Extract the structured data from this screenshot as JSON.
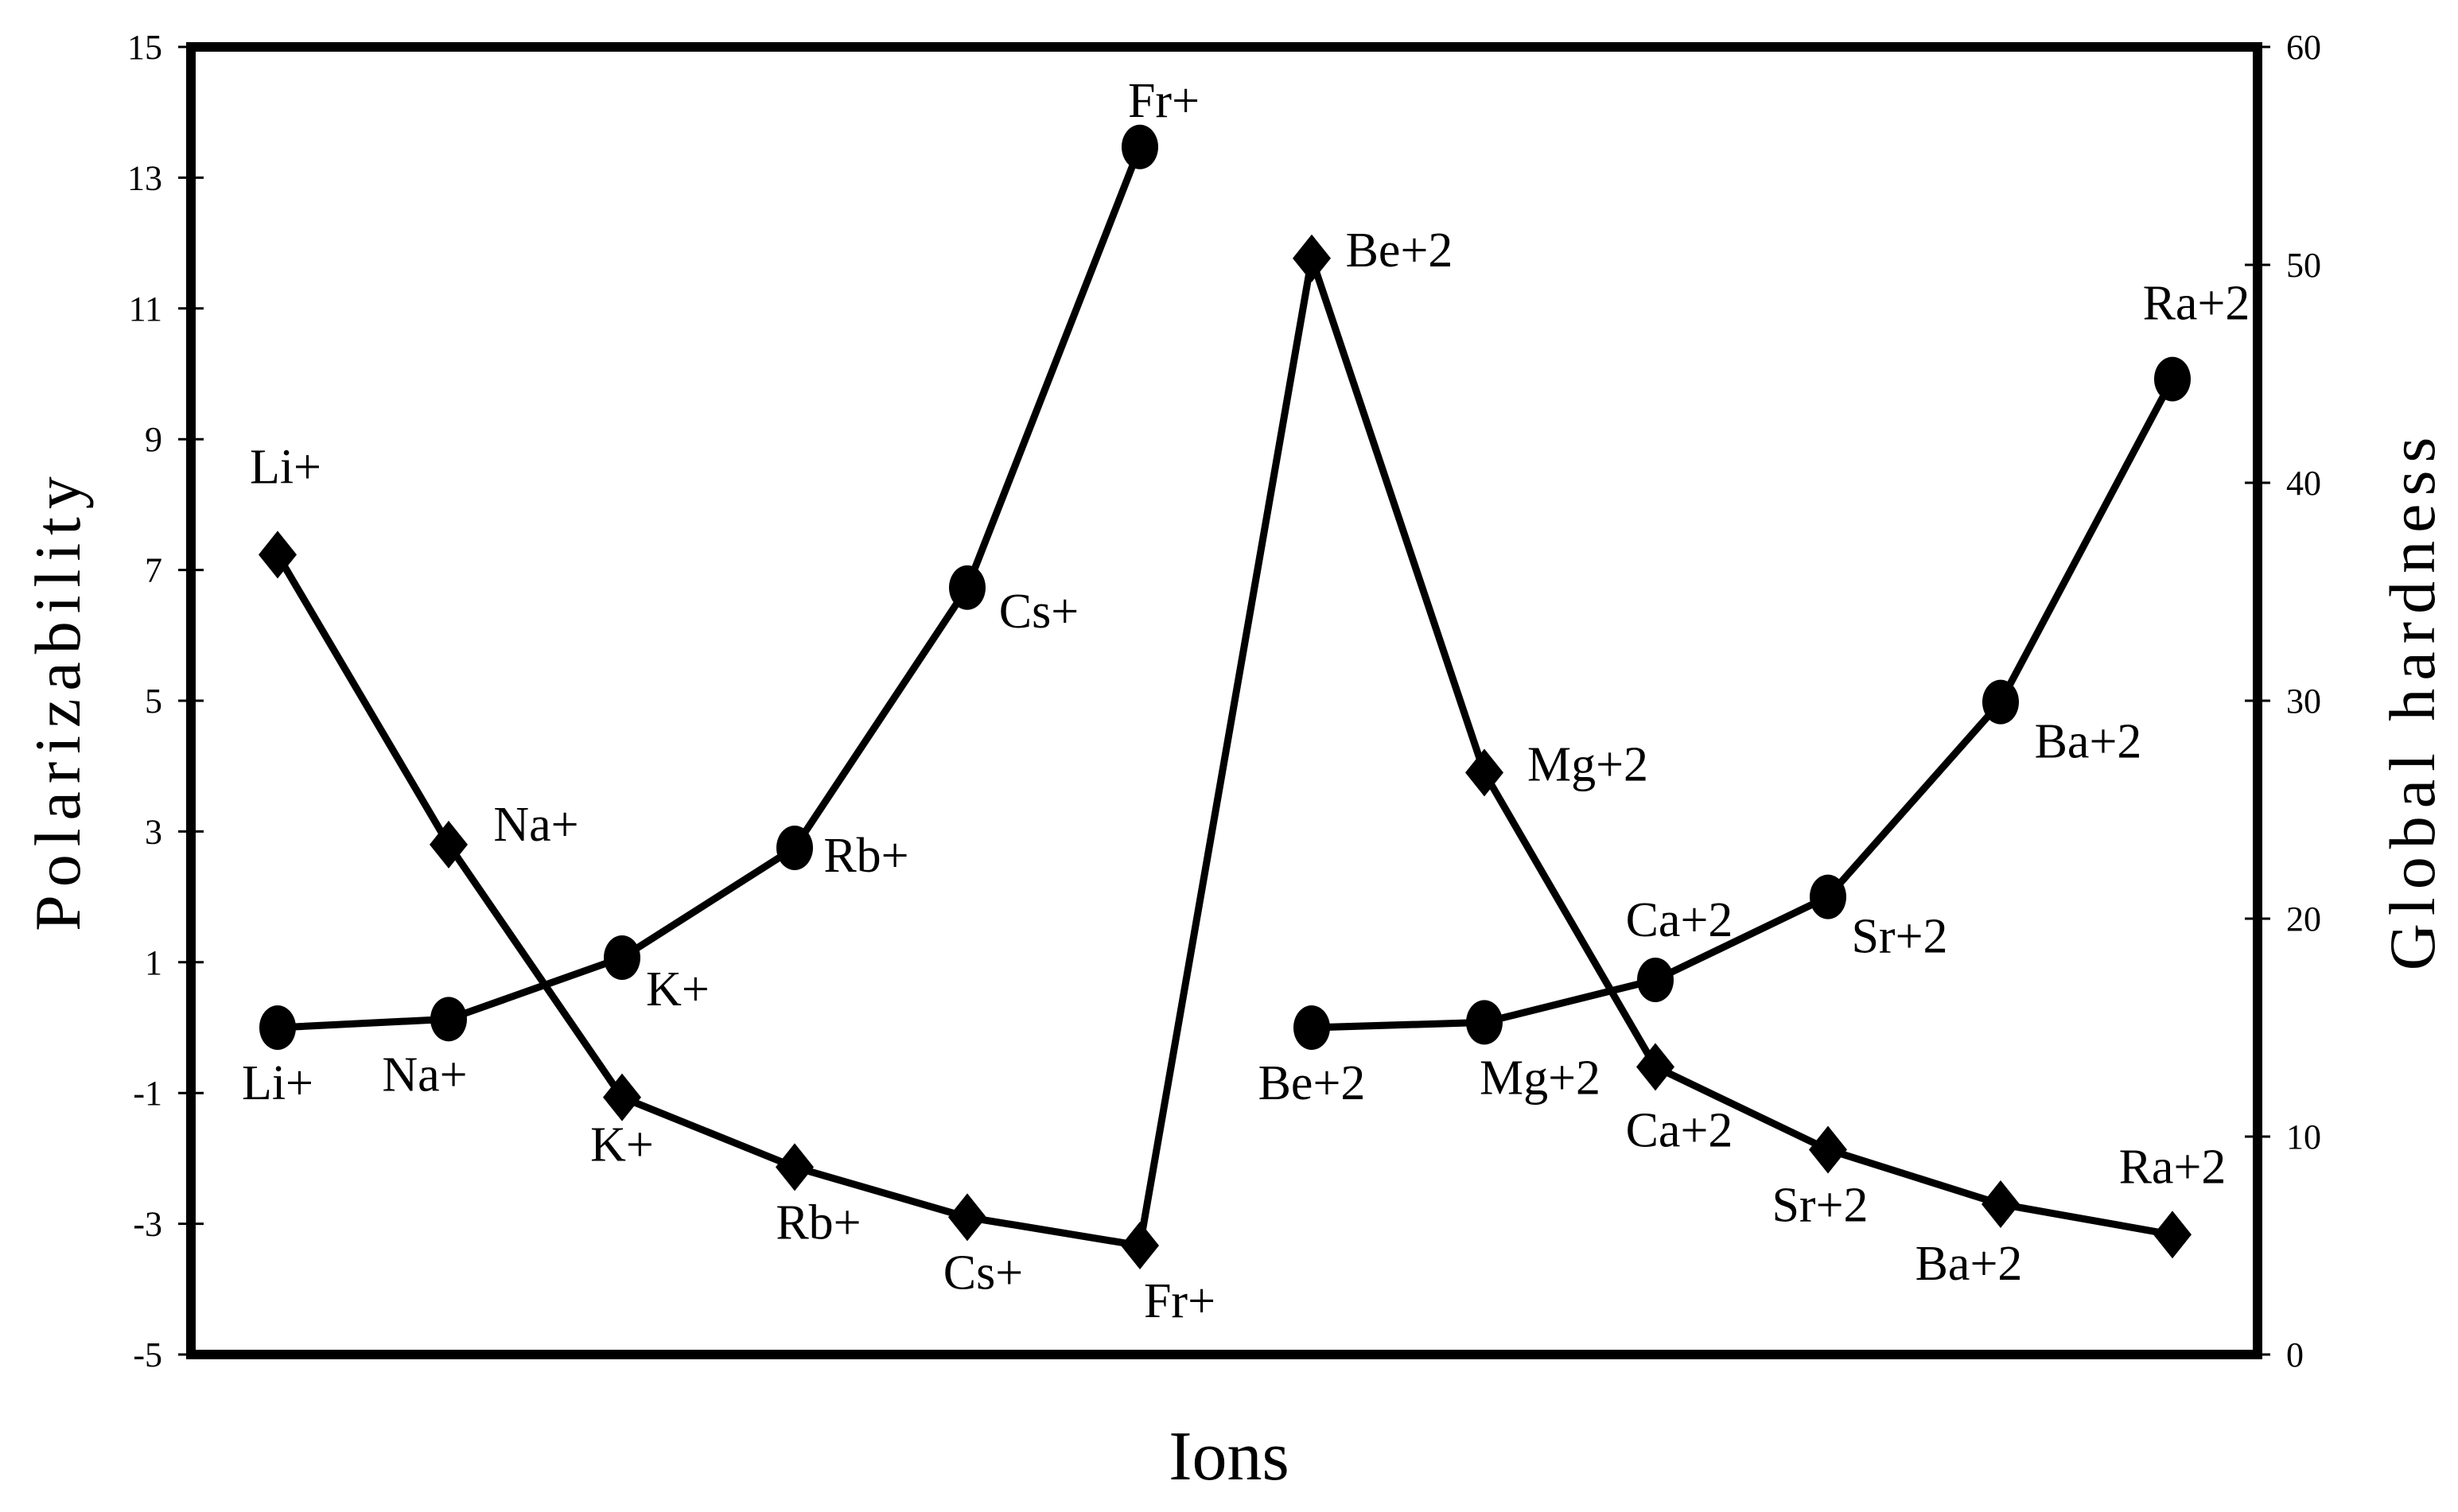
{
  "chart_data": {
    "type": "line",
    "title": "",
    "xlabel": "Ions",
    "ylabel": "Polarizability",
    "y2label": "Global hardness",
    "categories": [
      "Li+",
      "Na+",
      "K+",
      "Rb+",
      "Cs+",
      "Fr+",
      "Be+2",
      "Mg+2",
      "Ca+2",
      "Sr+2",
      "Ba+2",
      "Ra+2"
    ],
    "ylim": [
      -5,
      15
    ],
    "y2lim": [
      0,
      60
    ],
    "yticks": [
      15,
      13,
      11,
      9,
      7,
      5,
      3,
      1,
      -1,
      -3,
      -5
    ],
    "y2ticks": [
      60,
      50,
      40,
      30,
      20,
      10,
      0
    ],
    "grid": false,
    "legend": "none (point labels beside markers)",
    "series": [
      {
        "name": "Polarizability",
        "axis": "left",
        "marker": "circle",
        "color": "#000000",
        "segments": [
          [
            0,
            5
          ],
          [
            6,
            11
          ]
        ],
        "values": [
          0.0,
          0.13,
          1.07,
          2.75,
          6.73,
          13.47,
          0.0,
          0.08,
          0.73,
          2.0,
          4.98,
          9.92
        ]
      },
      {
        "name": "Global hardness",
        "axis": "right",
        "marker": "diamond",
        "color": "#000000",
        "segments": [
          [
            0,
            11
          ]
        ],
        "values": [
          36.7,
          23.4,
          11.8,
          8.6,
          6.3,
          5.0,
          50.3,
          26.7,
          13.2,
          9.4,
          6.9,
          5.5
        ]
      }
    ]
  },
  "axes": {
    "left_title": "Polarizability",
    "right_title": "Global hardness",
    "x_title": "Ions"
  }
}
